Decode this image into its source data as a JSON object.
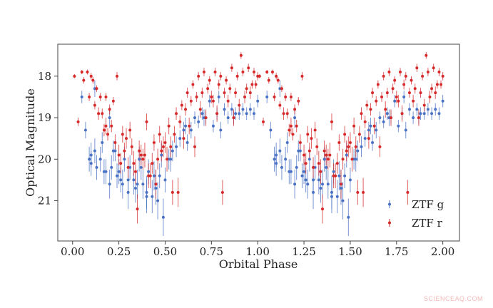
{
  "watermark": "SCIENCEAQ.COM",
  "colors": {
    "g": "#4a72c4",
    "r": "#d62a2a"
  },
  "chart_data": {
    "type": "scatter",
    "title": "",
    "xlabel": "Orbital Phase",
    "ylabel": "Optical Magnitude",
    "xlim": [
      -0.08,
      2.09
    ],
    "ylim": [
      21.97,
      17.23
    ],
    "y_inverted": true,
    "xticks": [
      "0.00",
      "0.25",
      "0.50",
      "0.75",
      "1.00",
      "1.25",
      "1.50",
      "1.75",
      "2.00"
    ],
    "yticks": [
      "18",
      "19",
      "20",
      "21"
    ],
    "legend": {
      "position": "lower-right",
      "entries": [
        "ZTF g",
        "ZTF r"
      ]
    },
    "grid": false,
    "series": [
      {
        "name": "ZTF g",
        "color": "#4a72c4",
        "x": [
          0.05,
          0.07,
          0.09,
          0.1,
          0.12,
          0.13,
          0.15,
          0.16,
          0.18,
          0.2,
          0.21,
          0.22,
          0.24,
          0.25,
          0.27,
          0.28,
          0.3,
          0.31,
          0.33,
          0.34,
          0.36,
          0.38,
          0.4,
          0.41,
          0.43,
          0.45,
          0.46,
          0.47,
          0.49,
          0.5,
          0.52,
          0.54,
          0.56,
          0.58,
          0.6,
          0.62,
          0.64,
          0.66,
          0.68,
          0.7,
          0.72,
          0.74,
          0.76,
          0.78,
          0.8,
          0.82,
          0.84,
          0.86,
          0.88,
          0.9,
          0.92,
          0.94,
          0.96,
          0.98,
          1.0,
          0.12,
          0.2,
          0.3,
          0.4,
          0.48,
          0.1,
          0.17,
          0.26,
          0.35,
          0.44,
          0.53,
          0.23,
          0.37,
          0.61,
          0.71,
          0.45,
          0.79,
          0.87
        ],
        "y": [
          18.5,
          19.3,
          20.0,
          19.9,
          19.8,
          20.2,
          20.0,
          19.6,
          20.3,
          20.6,
          20.2,
          19.8,
          20.4,
          20.3,
          20.6,
          20.0,
          20.8,
          20.2,
          20.5,
          20.7,
          20.0,
          20.6,
          20.8,
          20.3,
          20.9,
          20.6,
          21.0,
          20.4,
          21.4,
          20.5,
          20.0,
          19.8,
          19.7,
          19.5,
          19.3,
          19.6,
          19.3,
          19.0,
          19.1,
          18.9,
          19.0,
          18.6,
          19.2,
          18.9,
          19.3,
          18.8,
          19.0,
          18.8,
          18.9,
          18.9,
          18.8,
          18.9,
          18.8,
          18.9,
          18.6,
          18.3,
          19.0,
          20.5,
          20.9,
          19.9,
          20.1,
          20.3,
          20.5,
          20.6,
          20.4,
          20.0,
          19.8,
          20.2,
          19.2,
          19.0,
          20.7,
          18.5,
          19.0
        ],
        "yerr": [
          0.15,
          0.2,
          0.3,
          0.3,
          0.3,
          0.3,
          0.3,
          0.25,
          0.3,
          0.35,
          0.3,
          0.25,
          0.3,
          0.3,
          0.35,
          0.3,
          0.4,
          0.3,
          0.35,
          0.35,
          0.3,
          0.35,
          0.4,
          0.3,
          0.4,
          0.35,
          0.45,
          0.3,
          0.45,
          0.3,
          0.25,
          0.25,
          0.25,
          0.2,
          0.2,
          0.2,
          0.2,
          0.15,
          0.15,
          0.15,
          0.15,
          0.15,
          0.15,
          0.15,
          0.2,
          0.15,
          0.15,
          0.15,
          0.15,
          0.15,
          0.15,
          0.15,
          0.15,
          0.15,
          0.15,
          0.2,
          0.25,
          0.35,
          0.4,
          0.3,
          0.3,
          0.3,
          0.3,
          0.35,
          0.35,
          0.3,
          0.25,
          0.3,
          0.2,
          0.2,
          0.4,
          0.15,
          0.15
        ]
      },
      {
        "name": "ZTF r",
        "color": "#d62a2a",
        "x": [
          0.01,
          0.03,
          0.05,
          0.06,
          0.08,
          0.09,
          0.1,
          0.11,
          0.12,
          0.13,
          0.15,
          0.16,
          0.17,
          0.18,
          0.19,
          0.2,
          0.21,
          0.22,
          0.23,
          0.25,
          0.26,
          0.27,
          0.28,
          0.3,
          0.31,
          0.32,
          0.34,
          0.35,
          0.37,
          0.38,
          0.4,
          0.41,
          0.43,
          0.44,
          0.46,
          0.47,
          0.49,
          0.5,
          0.52,
          0.53,
          0.55,
          0.56,
          0.58,
          0.59,
          0.61,
          0.62,
          0.64,
          0.65,
          0.67,
          0.68,
          0.7,
          0.71,
          0.73,
          0.74,
          0.76,
          0.77,
          0.79,
          0.8,
          0.82,
          0.83,
          0.85,
          0.86,
          0.88,
          0.89,
          0.91,
          0.92,
          0.94,
          0.95,
          0.97,
          0.98,
          1.0,
          0.14,
          0.18,
          0.24,
          0.29,
          0.33,
          0.36,
          0.42,
          0.48,
          0.51,
          0.57,
          0.6,
          0.63,
          0.69,
          0.72,
          0.75,
          0.78,
          0.84,
          0.87,
          0.9,
          0.93,
          0.96,
          0.99,
          0.81,
          0.39,
          0.45,
          0.54,
          0.66
        ],
        "y": [
          18.0,
          19.1,
          17.9,
          18.1,
          17.9,
          18.5,
          18.0,
          18.1,
          18.7,
          18.3,
          18.5,
          18.9,
          19.3,
          18.5,
          19.4,
          18.8,
          19.2,
          18.6,
          19.6,
          19.9,
          20.1,
          19.4,
          19.8,
          20.2,
          19.3,
          19.7,
          20.3,
          21.2,
          19.9,
          20.0,
          19.1,
          20.4,
          20.1,
          19.6,
          20.0,
          19.4,
          19.7,
          19.6,
          19.2,
          19.7,
          19.4,
          18.9,
          19.1,
          18.7,
          18.8,
          18.4,
          18.6,
          18.2,
          18.5,
          18.0,
          18.4,
          17.9,
          18.3,
          18.1,
          18.6,
          17.9,
          18.2,
          18.0,
          18.4,
          18.1,
          18.3,
          17.8,
          18.4,
          18.0,
          17.5,
          17.9,
          18.3,
          17.8,
          18.2,
          17.9,
          18.0,
          18.9,
          19.2,
          18.0,
          19.5,
          20.1,
          19.8,
          20.4,
          19.8,
          20.0,
          20.8,
          19.5,
          19.2,
          18.8,
          19.0,
          18.5,
          18.9,
          18.6,
          19.0,
          18.7,
          18.5,
          18.4,
          18.2,
          20.8,
          19.9,
          20.6,
          20.8,
          19.7
        ],
        "yerr": [
          0.05,
          0.1,
          0.05,
          0.08,
          0.06,
          0.1,
          0.08,
          0.08,
          0.1,
          0.08,
          0.1,
          0.12,
          0.15,
          0.1,
          0.15,
          0.12,
          0.15,
          0.1,
          0.2,
          0.25,
          0.25,
          0.2,
          0.2,
          0.25,
          0.2,
          0.2,
          0.3,
          0.35,
          0.25,
          0.25,
          0.2,
          0.3,
          0.25,
          0.2,
          0.25,
          0.2,
          0.25,
          0.25,
          0.2,
          0.25,
          0.2,
          0.15,
          0.15,
          0.12,
          0.15,
          0.12,
          0.12,
          0.1,
          0.12,
          0.1,
          0.12,
          0.1,
          0.12,
          0.1,
          0.15,
          0.1,
          0.12,
          0.1,
          0.12,
          0.1,
          0.12,
          0.1,
          0.12,
          0.1,
          0.08,
          0.1,
          0.12,
          0.1,
          0.1,
          0.1,
          0.1,
          0.15,
          0.2,
          0.1,
          0.25,
          0.3,
          0.25,
          0.3,
          0.25,
          0.3,
          0.35,
          0.25,
          0.2,
          0.2,
          0.2,
          0.15,
          0.2,
          0.15,
          0.2,
          0.15,
          0.15,
          0.15,
          0.1,
          0.3,
          0.3,
          0.35,
          0.3,
          0.25
        ]
      }
    ]
  }
}
